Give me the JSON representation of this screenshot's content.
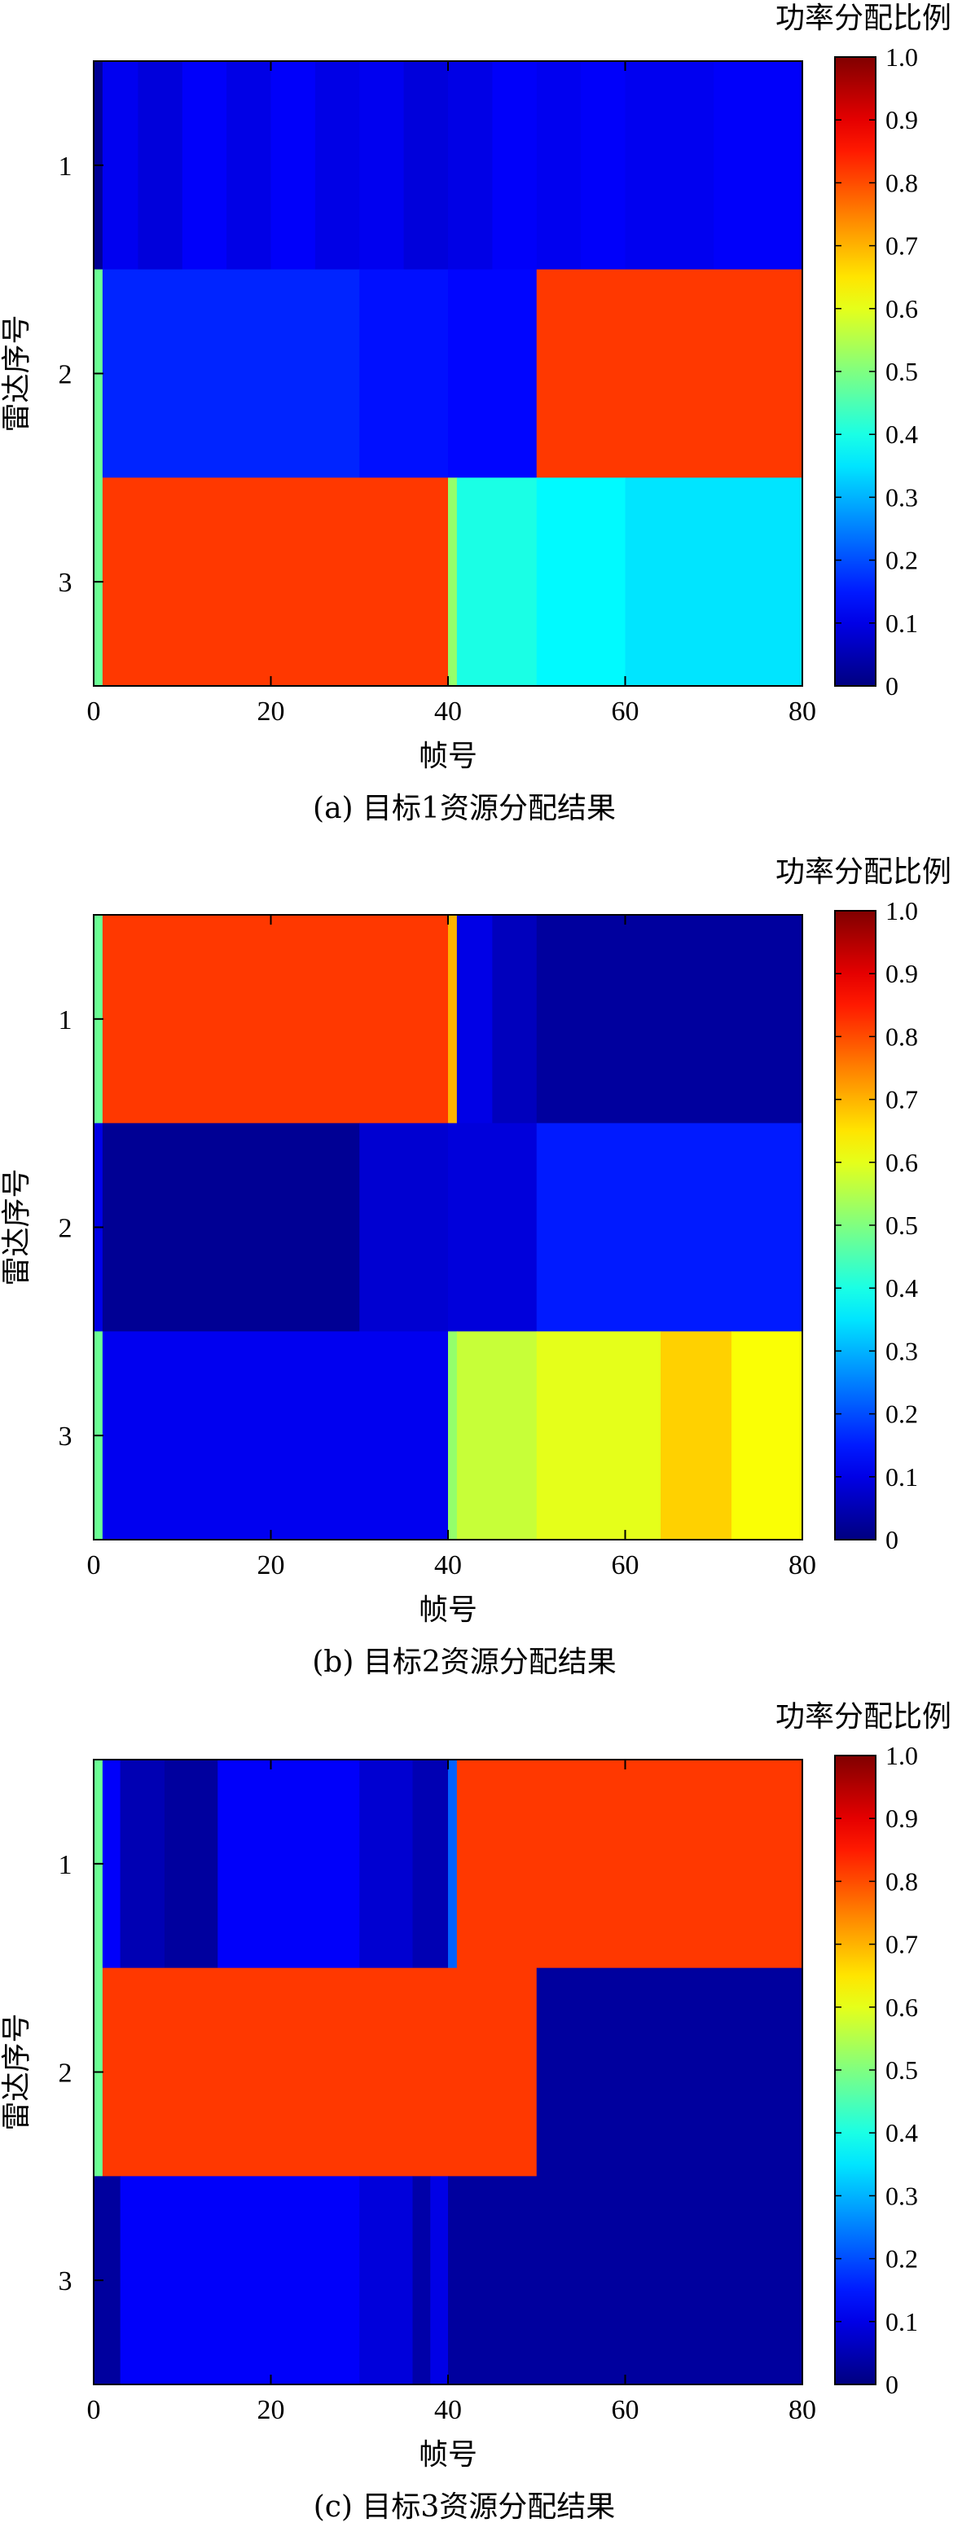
{
  "colormap": "jet",
  "colors": {
    "axis": "#000000",
    "background": "#ffffff"
  },
  "chart_data": [
    {
      "type": "heatmap",
      "caption": "(a) 目标1资源分配结果",
      "xlabel": "帧号",
      "ylabel": "雷达序号",
      "x_ticks": [
        "0",
        "20",
        "40",
        "60",
        "80"
      ],
      "y_ticks": [
        "1",
        "2",
        "3"
      ],
      "xlim": [
        0,
        80
      ],
      "colorbar": {
        "title": "功率分配比例",
        "ticks": [
          "0",
          "0.1",
          "0.2",
          "0.3",
          "0.4",
          "0.5",
          "0.6",
          "0.7",
          "0.8",
          "0.9",
          "1.0"
        ],
        "range": [
          0,
          1
        ]
      },
      "rows": [
        {
          "radar": "1",
          "segments": [
            {
              "x0": 0,
              "x1": 1,
              "value": 0.02
            },
            {
              "x0": 1,
              "x1": 5,
              "value": 0.11
            },
            {
              "x0": 5,
              "x1": 10,
              "value": 0.09
            },
            {
              "x0": 10,
              "x1": 15,
              "value": 0.12
            },
            {
              "x0": 15,
              "x1": 20,
              "value": 0.1
            },
            {
              "x0": 20,
              "x1": 25,
              "value": 0.12
            },
            {
              "x0": 25,
              "x1": 30,
              "value": 0.1
            },
            {
              "x0": 30,
              "x1": 35,
              "value": 0.11
            },
            {
              "x0": 35,
              "x1": 40,
              "value": 0.09
            },
            {
              "x0": 40,
              "x1": 45,
              "value": 0.1
            },
            {
              "x0": 45,
              "x1": 50,
              "value": 0.12
            },
            {
              "x0": 50,
              "x1": 55,
              "value": 0.11
            },
            {
              "x0": 55,
              "x1": 60,
              "value": 0.12
            },
            {
              "x0": 60,
              "x1": 70,
              "value": 0.11
            },
            {
              "x0": 70,
              "x1": 80,
              "value": 0.12
            }
          ]
        },
        {
          "radar": "2",
          "segments": [
            {
              "x0": 0,
              "x1": 1,
              "value": 0.48
            },
            {
              "x0": 1,
              "x1": 30,
              "value": 0.16
            },
            {
              "x0": 30,
              "x1": 40,
              "value": 0.14
            },
            {
              "x0": 40,
              "x1": 50,
              "value": 0.13
            },
            {
              "x0": 50,
              "x1": 80,
              "value": 0.82
            }
          ]
        },
        {
          "radar": "3",
          "segments": [
            {
              "x0": 0,
              "x1": 1,
              "value": 0.48
            },
            {
              "x0": 1,
              "x1": 40,
              "value": 0.82
            },
            {
              "x0": 40,
              "x1": 41,
              "value": 0.52
            },
            {
              "x0": 41,
              "x1": 50,
              "value": 0.4
            },
            {
              "x0": 50,
              "x1": 60,
              "value": 0.37
            },
            {
              "x0": 60,
              "x1": 80,
              "value": 0.35
            }
          ]
        }
      ]
    },
    {
      "type": "heatmap",
      "caption": "(b) 目标2资源分配结果",
      "xlabel": "帧号",
      "ylabel": "雷达序号",
      "x_ticks": [
        "0",
        "20",
        "40",
        "60",
        "80"
      ],
      "y_ticks": [
        "1",
        "2",
        "3"
      ],
      "xlim": [
        0,
        80
      ],
      "colorbar": {
        "title": "功率分配比例",
        "ticks": [
          "0",
          "0.1",
          "0.2",
          "0.3",
          "0.4",
          "0.5",
          "0.6",
          "0.7",
          "0.8",
          "0.9",
          "1.0"
        ],
        "range": [
          0,
          1
        ]
      },
      "rows": [
        {
          "radar": "1",
          "segments": [
            {
              "x0": 0,
              "x1": 1,
              "value": 0.48
            },
            {
              "x0": 1,
              "x1": 40,
              "value": 0.82
            },
            {
              "x0": 40,
              "x1": 41,
              "value": 0.7
            },
            {
              "x0": 41,
              "x1": 45,
              "value": 0.1
            },
            {
              "x0": 45,
              "x1": 50,
              "value": 0.06
            },
            {
              "x0": 50,
              "x1": 80,
              "value": 0.03
            }
          ]
        },
        {
          "radar": "2",
          "segments": [
            {
              "x0": 0,
              "x1": 1,
              "value": 0.1
            },
            {
              "x0": 1,
              "x1": 30,
              "value": 0.02
            },
            {
              "x0": 30,
              "x1": 40,
              "value": 0.08
            },
            {
              "x0": 40,
              "x1": 50,
              "value": 0.09
            },
            {
              "x0": 50,
              "x1": 80,
              "value": 0.15
            }
          ]
        },
        {
          "radar": "3",
          "segments": [
            {
              "x0": 0,
              "x1": 1,
              "value": 0.48
            },
            {
              "x0": 1,
              "x1": 40,
              "value": 0.11
            },
            {
              "x0": 40,
              "x1": 41,
              "value": 0.52
            },
            {
              "x0": 41,
              "x1": 50,
              "value": 0.57
            },
            {
              "x0": 50,
              "x1": 64,
              "value": 0.6
            },
            {
              "x0": 64,
              "x1": 72,
              "value": 0.67
            },
            {
              "x0": 72,
              "x1": 80,
              "value": 0.62
            }
          ]
        }
      ]
    },
    {
      "type": "heatmap",
      "caption": "(c) 目标3资源分配结果",
      "xlabel": "帧号",
      "ylabel": "雷达序号",
      "x_ticks": [
        "0",
        "20",
        "40",
        "60",
        "80"
      ],
      "y_ticks": [
        "1",
        "2",
        "3"
      ],
      "xlim": [
        0,
        80
      ],
      "colorbar": {
        "title": "功率分配比例",
        "ticks": [
          "0",
          "0.1",
          "0.2",
          "0.3",
          "0.4",
          "0.5",
          "0.6",
          "0.7",
          "0.8",
          "0.9",
          "1.0"
        ],
        "range": [
          0,
          1
        ]
      },
      "rows": [
        {
          "radar": "1",
          "segments": [
            {
              "x0": 0,
              "x1": 1,
              "value": 0.48
            },
            {
              "x0": 1,
              "x1": 3,
              "value": 0.12
            },
            {
              "x0": 3,
              "x1": 8,
              "value": 0.05
            },
            {
              "x0": 8,
              "x1": 14,
              "value": 0.03
            },
            {
              "x0": 14,
              "x1": 30,
              "value": 0.12
            },
            {
              "x0": 30,
              "x1": 36,
              "value": 0.08
            },
            {
              "x0": 36,
              "x1": 40,
              "value": 0.05
            },
            {
              "x0": 40,
              "x1": 41,
              "value": 0.22
            },
            {
              "x0": 41,
              "x1": 80,
              "value": 0.82
            }
          ]
        },
        {
          "radar": "2",
          "segments": [
            {
              "x0": 0,
              "x1": 1,
              "value": 0.48
            },
            {
              "x0": 1,
              "x1": 50,
              "value": 0.82
            },
            {
              "x0": 50,
              "x1": 80,
              "value": 0.03
            }
          ]
        },
        {
          "radar": "3",
          "segments": [
            {
              "x0": 0,
              "x1": 3,
              "value": 0.03
            },
            {
              "x0": 3,
              "x1": 30,
              "value": 0.12
            },
            {
              "x0": 30,
              "x1": 36,
              "value": 0.09
            },
            {
              "x0": 36,
              "x1": 38,
              "value": 0.04
            },
            {
              "x0": 38,
              "x1": 40,
              "value": 0.1
            },
            {
              "x0": 40,
              "x1": 80,
              "value": 0.03
            }
          ]
        }
      ]
    }
  ]
}
